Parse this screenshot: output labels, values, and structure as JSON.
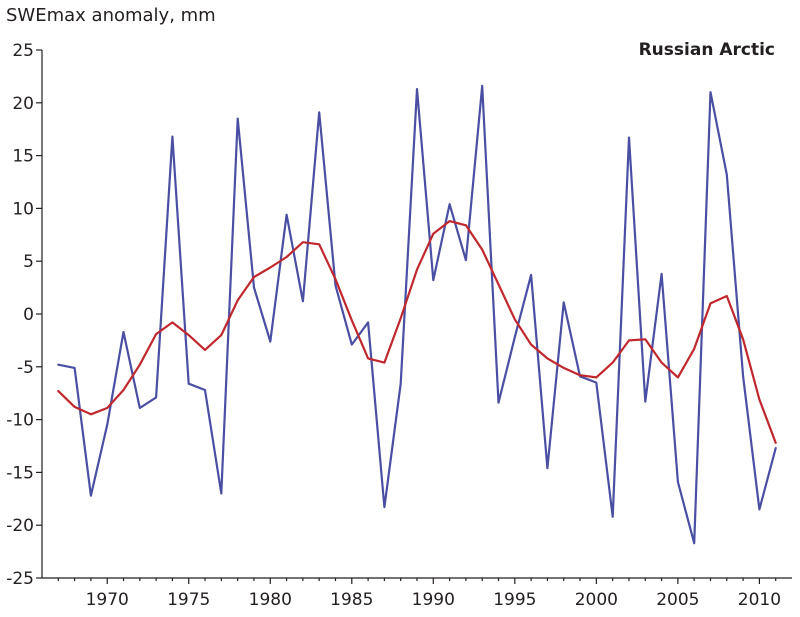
{
  "chart_data": {
    "type": "line",
    "title": "",
    "ylabel": "SWEmax anomaly, mm",
    "xlabel": "",
    "annotation": "Russian Arctic",
    "xlim": [
      1966,
      2012
    ],
    "ylim": [
      -25,
      25
    ],
    "x_ticks": [
      1970,
      1975,
      1980,
      1985,
      1990,
      1995,
      2000,
      2005,
      2010
    ],
    "y_ticks": [
      -25,
      -20,
      -15,
      -10,
      -5,
      0,
      5,
      10,
      15,
      20,
      25
    ],
    "grid": false,
    "series": [
      {
        "color": "#4a4fa3",
        "x": [
          1967,
          1968,
          1969,
          1970,
          1971,
          1972,
          1973,
          1974,
          1975,
          1976,
          1977,
          1978,
          1979,
          1980,
          1981,
          1982,
          1983,
          1984,
          1985,
          1986,
          1987,
          1988,
          1989,
          1990,
          1991,
          1992,
          1993,
          1994,
          1995,
          1996,
          1997,
          1998,
          1999,
          2000,
          2001,
          2002,
          2003,
          2004,
          2005,
          2006,
          2007,
          2008,
          2009,
          2010,
          2011
        ],
        "values": [
          -4.8,
          -5.1,
          -17.2,
          -10.5,
          -1.7,
          -8.9,
          -7.9,
          16.8,
          -6.6,
          -7.2,
          -17.0,
          18.5,
          2.5,
          -2.6,
          9.4,
          1.2,
          19.1,
          2.7,
          -2.9,
          -0.8,
          -18.3,
          -6.6,
          21.3,
          3.2,
          10.4,
          5.1,
          21.6,
          -8.4,
          -2.2,
          3.7,
          -14.6,
          1.1,
          -5.9,
          -6.5,
          -19.2,
          16.7,
          -8.3,
          3.8,
          -15.9,
          -21.7,
          21.0,
          13.2,
          -5.9,
          -18.5,
          -12.7
        ]
      },
      {
        "color": "#c0282d",
        "x": [
          1967,
          1968,
          1969,
          1970,
          1971,
          1972,
          1973,
          1974,
          1975,
          1976,
          1977,
          1978,
          1979,
          1980,
          1981,
          1982,
          1983,
          1984,
          1985,
          1986,
          1987,
          1988,
          1989,
          1990,
          1991,
          1992,
          1993,
          1994,
          1995,
          1996,
          1997,
          1998,
          1999,
          2000,
          2001,
          2002,
          2003,
          2004,
          2005,
          2006,
          2007,
          2008,
          2009,
          2010,
          2011
        ],
        "values": [
          -7.3,
          -8.8,
          -9.5,
          -8.9,
          -7.2,
          -4.8,
          -1.9,
          -0.8,
          -2.0,
          -3.4,
          -2.0,
          1.3,
          3.5,
          4.4,
          5.4,
          6.8,
          6.6,
          3.3,
          -0.6,
          -4.2,
          -4.6,
          -0.4,
          4.2,
          7.6,
          8.8,
          8.4,
          6.1,
          2.8,
          -0.5,
          -2.9,
          -4.2,
          -5.1,
          -5.8,
          -6.0,
          -4.6,
          -2.5,
          -2.4,
          -4.6,
          -6.0,
          -3.3,
          1.0,
          1.7,
          -2.4,
          -8.1,
          -12.2
        ]
      }
    ]
  }
}
